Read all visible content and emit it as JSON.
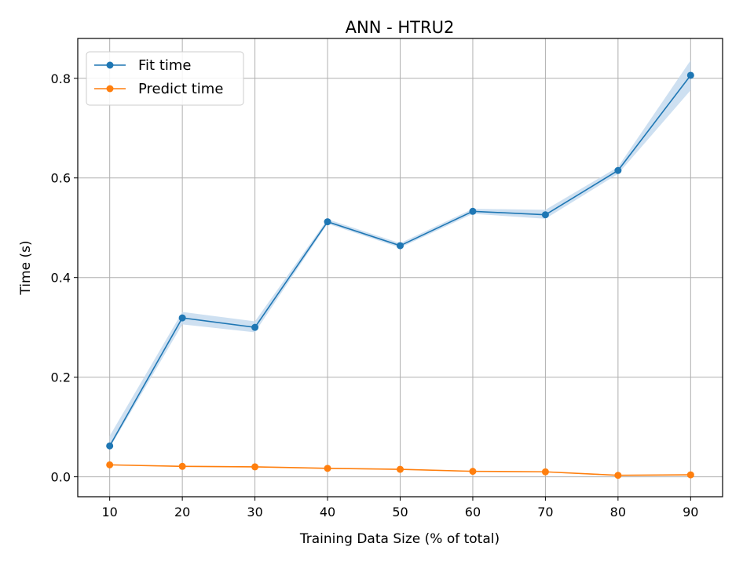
{
  "chart_data": {
    "type": "line",
    "title": "ANN - HTRU2",
    "xlabel": "Training Data Size (% of total)",
    "ylabel": "Time (s)",
    "x": [
      10,
      20,
      30,
      40,
      50,
      60,
      70,
      80,
      90
    ],
    "xticks": [
      "10",
      "20",
      "30",
      "40",
      "50",
      "60",
      "70",
      "80",
      "90"
    ],
    "yticks": [
      "0.0",
      "0.2",
      "0.4",
      "0.6",
      "0.8"
    ],
    "ytick_values": [
      0.0,
      0.2,
      0.4,
      0.6,
      0.8
    ],
    "xlim": [
      5.6,
      94.4
    ],
    "ylim": [
      -0.04,
      0.88
    ],
    "grid": true,
    "legend_position": "top-left",
    "series": [
      {
        "name": "Fit time",
        "color": "#1f77b4",
        "band_color": "#c6dbef",
        "values": [
          0.062,
          0.319,
          0.3,
          0.512,
          0.464,
          0.533,
          0.526,
          0.615,
          0.806
        ],
        "upper": [
          0.082,
          0.331,
          0.312,
          0.517,
          0.469,
          0.538,
          0.536,
          0.622,
          0.836
        ],
        "lower": [
          0.058,
          0.306,
          0.29,
          0.508,
          0.46,
          0.528,
          0.518,
          0.608,
          0.776
        ]
      },
      {
        "name": "Predict time",
        "color": "#ff7f0e",
        "band_color": "#ffd9b3",
        "values": [
          0.024,
          0.021,
          0.02,
          0.017,
          0.015,
          0.011,
          0.01,
          0.003,
          0.004
        ],
        "upper": [
          0.025,
          0.022,
          0.021,
          0.018,
          0.016,
          0.012,
          0.011,
          0.004,
          0.005
        ],
        "lower": [
          0.023,
          0.02,
          0.019,
          0.016,
          0.014,
          0.01,
          0.009,
          0.002,
          0.003
        ]
      }
    ]
  }
}
